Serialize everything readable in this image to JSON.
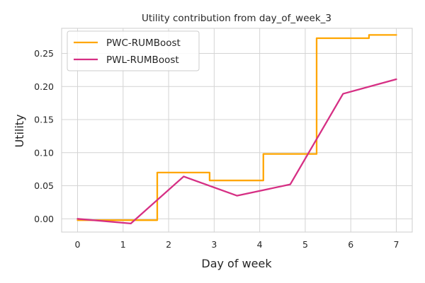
{
  "chart_data": {
    "type": "line",
    "title": "Utility contribution from day_of_week_3",
    "xlabel": "Day of week",
    "ylabel": "Utility",
    "xlim": [
      -0.35,
      7.35
    ],
    "ylim": [
      -0.02,
      0.288
    ],
    "xticks": [
      0,
      1,
      2,
      3,
      4,
      5,
      6,
      7
    ],
    "yticks": [
      0.0,
      0.05,
      0.1,
      0.15,
      0.2,
      0.25
    ],
    "ytick_labels": [
      "0.00",
      "0.05",
      "0.10",
      "0.15",
      "0.20",
      "0.25"
    ],
    "grid": true,
    "legend_position": "top-left",
    "series": [
      {
        "name": "PWC-RUMBoost",
        "color": "#ffa600",
        "style": "step",
        "x": [
          0,
          0.65,
          1.75,
          1.75,
          2.9,
          2.9,
          4.08,
          4.08,
          5.25,
          5.25,
          6.4,
          6.4,
          7
        ],
        "y": [
          -0.002,
          -0.002,
          -0.002,
          0.07,
          0.07,
          0.058,
          0.058,
          0.098,
          0.098,
          0.273,
          0.273,
          0.278,
          0.278
        ]
      },
      {
        "name": "PWL-RUMBoost",
        "color": "#d62f84",
        "style": "line",
        "x": [
          0,
          1.17,
          2.33,
          3.5,
          4.67,
          5.83,
          7
        ],
        "y": [
          0.0,
          -0.007,
          0.064,
          0.035,
          0.052,
          0.189,
          0.211
        ]
      }
    ]
  }
}
